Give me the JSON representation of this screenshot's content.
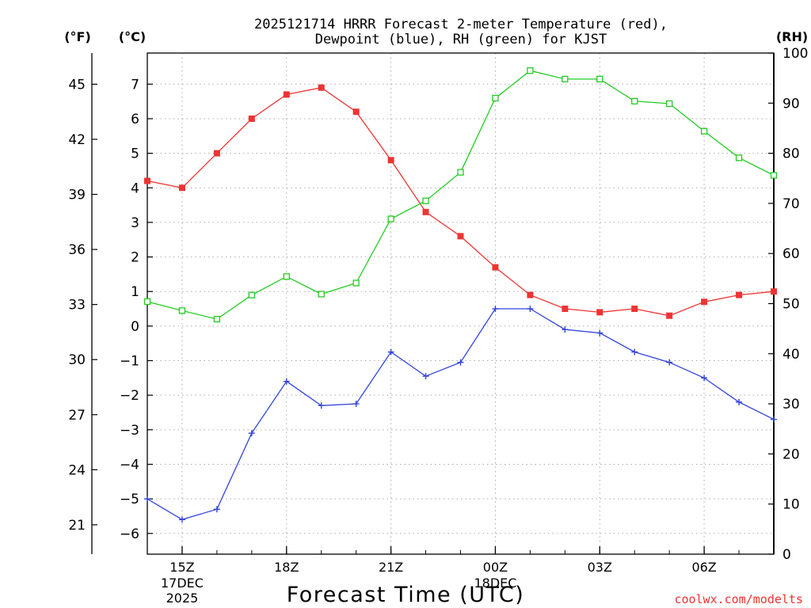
{
  "chart_data": {
    "type": "line",
    "title_line1": "2025121714 HRRR Forecast 2-meter Temperature (red),",
    "title_line2": "Dewpoint (blue), RH (green) for KJST",
    "xlabel": "Forecast Time (UTC)",
    "credit": "coolwx.com/modelts",
    "axes": {
      "fahrenheit": {
        "unit_label": "(°F)",
        "range": [
          19.4,
          46.7
        ],
        "ticks": [
          21,
          24,
          27,
          30,
          33,
          36,
          39,
          42,
          45
        ]
      },
      "celsius": {
        "unit_label": "(°C)",
        "range": [
          -6.6,
          7.9
        ],
        "ticks": [
          -6,
          -5,
          -4,
          -3,
          -2,
          -1,
          0,
          1,
          2,
          3,
          4,
          5,
          6,
          7
        ]
      },
      "rh": {
        "unit_label": "(RH)",
        "range": [
          0,
          100
        ],
        "ticks": [
          0,
          10,
          20,
          30,
          40,
          50,
          60,
          70,
          80,
          90,
          100
        ]
      }
    },
    "x": {
      "range": [
        14,
        32
      ],
      "ticks": [
        {
          "x": 15,
          "label": "15Z",
          "sub": [
            "17DEC",
            "2025"
          ]
        },
        {
          "x": 18,
          "label": "18Z",
          "sub": []
        },
        {
          "x": 21,
          "label": "21Z",
          "sub": []
        },
        {
          "x": 24,
          "label": "00Z",
          "sub": [
            "18DEC"
          ]
        },
        {
          "x": 27,
          "label": "03Z",
          "sub": []
        },
        {
          "x": 30,
          "label": "06Z",
          "sub": []
        }
      ]
    },
    "hours": [
      14,
      15,
      16,
      17,
      18,
      19,
      20,
      21,
      22,
      23,
      24,
      25,
      26,
      27,
      28,
      29,
      30,
      31,
      32
    ],
    "series": [
      {
        "name": "2-meter Temperature",
        "axis": "celsius",
        "color": "#ee3333",
        "marker": "filled-square",
        "values": [
          4.2,
          4.0,
          5.0,
          6.0,
          6.7,
          6.9,
          6.2,
          4.8,
          3.3,
          2.6,
          1.7,
          0.9,
          0.5,
          0.4,
          0.5,
          0.3,
          0.7,
          0.9,
          1.0
        ]
      },
      {
        "name": "Dewpoint",
        "axis": "celsius",
        "color": "#3344dd",
        "marker": "plus",
        "values": [
          -5.0,
          -5.6,
          -5.3,
          -3.1,
          -1.6,
          -2.3,
          -2.25,
          -0.75,
          -1.45,
          -1.05,
          0.5,
          0.5,
          -0.1,
          -0.2,
          -0.75,
          -1.05,
          -1.5,
          -2.2,
          -2.7
        ]
      },
      {
        "name": "RH",
        "axis": "rh",
        "color": "#22cc22",
        "marker": "open-square",
        "values": [
          50.4,
          48.6,
          46.9,
          51.7,
          55.4,
          51.9,
          54.1,
          66.9,
          70.5,
          76.2,
          91.0,
          96.5,
          94.8,
          94.8,
          90.4,
          89.9,
          84.4,
          79.1,
          75.6
        ]
      }
    ]
  }
}
